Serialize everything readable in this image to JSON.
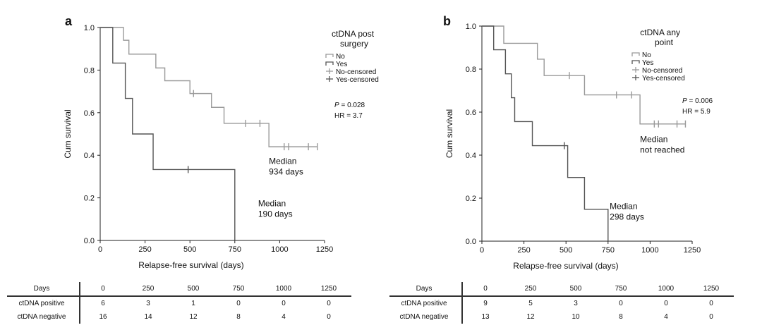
{
  "chart_data": [
    {
      "type": "line",
      "panel_label": "a",
      "xlabel": "Relapse-free survival (days)",
      "ylabel": "Cum survival",
      "xlim": [
        0,
        1250
      ],
      "ylim": [
        0,
        1
      ],
      "xticks": [
        "0",
        "250",
        "500",
        "750",
        "1000",
        "1250"
      ],
      "yticks": [
        "0.0",
        "0.2",
        "0.4",
        "0.6",
        "0.8",
        "1.0"
      ],
      "legend_title": [
        "ctDNA post",
        "surgery"
      ],
      "legend_entries": [
        "No",
        "Yes",
        "No-censored",
        "Yes-censored"
      ],
      "legend_placement": "top-right",
      "stats": [
        "P = 0.028",
        "HR = 3.7"
      ],
      "series": [
        {
          "name": "No",
          "color": "#9a9a9a",
          "steps": [
            [
              0,
              1.0
            ],
            [
              130,
              0.94
            ],
            [
              160,
              0.875
            ],
            [
              310,
              0.81
            ],
            [
              360,
              0.75
            ],
            [
              500,
              0.69
            ],
            [
              620,
              0.625
            ],
            [
              690,
              0.55
            ],
            [
              940,
              0.44
            ],
            [
              1210,
              0.44
            ]
          ],
          "censored": [
            [
              520,
              0.69
            ],
            [
              810,
              0.55
            ],
            [
              890,
              0.55
            ],
            [
              1025,
              0.44
            ],
            [
              1050,
              0.44
            ],
            [
              1160,
              0.44
            ],
            [
              1210,
              0.44
            ]
          ]
        },
        {
          "name": "Yes",
          "color": "#555555",
          "steps": [
            [
              0,
              1.0
            ],
            [
              70,
              0.833
            ],
            [
              140,
              0.667
            ],
            [
              180,
              0.5
            ],
            [
              295,
              0.333
            ],
            [
              750,
              0.0
            ]
          ],
          "censored": [
            [
              490,
              0.333
            ]
          ]
        }
      ],
      "annotations": [
        {
          "text": [
            "Median",
            "934 days"
          ],
          "x": 940,
          "y": 0.36
        },
        {
          "text": [
            "Median",
            "190 days"
          ],
          "x": 880,
          "y": 0.16
        }
      ],
      "risk_table": {
        "header": "Days",
        "days": [
          "0",
          "250",
          "500",
          "750",
          "1000",
          "1250"
        ],
        "rows": [
          {
            "label": "ctDNA positive",
            "values": [
              "6",
              "3",
              "1",
              "0",
              "0",
              "0"
            ]
          },
          {
            "label": "ctDNA negative",
            "values": [
              "16",
              "14",
              "12",
              "8",
              "4",
              "0"
            ]
          }
        ]
      }
    },
    {
      "type": "line",
      "panel_label": "b",
      "xlabel": "Relapse-free survival (days)",
      "ylabel": "Cum survival",
      "xlim": [
        0,
        1250
      ],
      "ylim": [
        0,
        1
      ],
      "xticks": [
        "0",
        "250",
        "500",
        "750",
        "1000",
        "1250"
      ],
      "yticks": [
        "0.0",
        "0.2",
        "0.4",
        "0.6",
        "0.8",
        "1.0"
      ],
      "legend_title": [
        "ctDNA any",
        "point"
      ],
      "legend_entries": [
        "No",
        "Yes",
        "No-censored",
        "Yes-censored"
      ],
      "legend_placement": "top-right",
      "stats": [
        "P = 0.006",
        "HR = 5.9"
      ],
      "series": [
        {
          "name": "No",
          "color": "#9a9a9a",
          "steps": [
            [
              0,
              1.0
            ],
            [
              130,
              0.92
            ],
            [
              330,
              0.846
            ],
            [
              370,
              0.77
            ],
            [
              610,
              0.68
            ],
            [
              940,
              0.545
            ],
            [
              1210,
              0.545
            ]
          ],
          "censored": [
            [
              520,
              0.77
            ],
            [
              800,
              0.68
            ],
            [
              890,
              0.68
            ],
            [
              1025,
              0.545
            ],
            [
              1050,
              0.545
            ],
            [
              1160,
              0.545
            ],
            [
              1210,
              0.545
            ]
          ]
        },
        {
          "name": "Yes",
          "color": "#555555",
          "steps": [
            [
              0,
              1.0
            ],
            [
              70,
              0.89
            ],
            [
              140,
              0.778
            ],
            [
              175,
              0.667
            ],
            [
              195,
              0.556
            ],
            [
              300,
              0.444
            ],
            [
              510,
              0.296
            ],
            [
              610,
              0.148
            ],
            [
              750,
              0.0
            ]
          ],
          "censored": [
            [
              490,
              0.444
            ]
          ]
        }
      ],
      "annotations": [
        {
          "text": [
            "Median",
            "not reached"
          ],
          "x": 940,
          "y": 0.46
        },
        {
          "text": [
            "Median",
            "298 days"
          ],
          "x": 760,
          "y": 0.15
        }
      ],
      "risk_table": {
        "header": "Days",
        "days": [
          "0",
          "250",
          "500",
          "750",
          "1000",
          "1250"
        ],
        "rows": [
          {
            "label": "ctDNA positive",
            "values": [
              "9",
              "5",
              "3",
              "0",
              "0",
              "0"
            ]
          },
          {
            "label": "ctDNA negative",
            "values": [
              "13",
              "12",
              "10",
              "8",
              "4",
              "0"
            ]
          }
        ]
      }
    }
  ]
}
